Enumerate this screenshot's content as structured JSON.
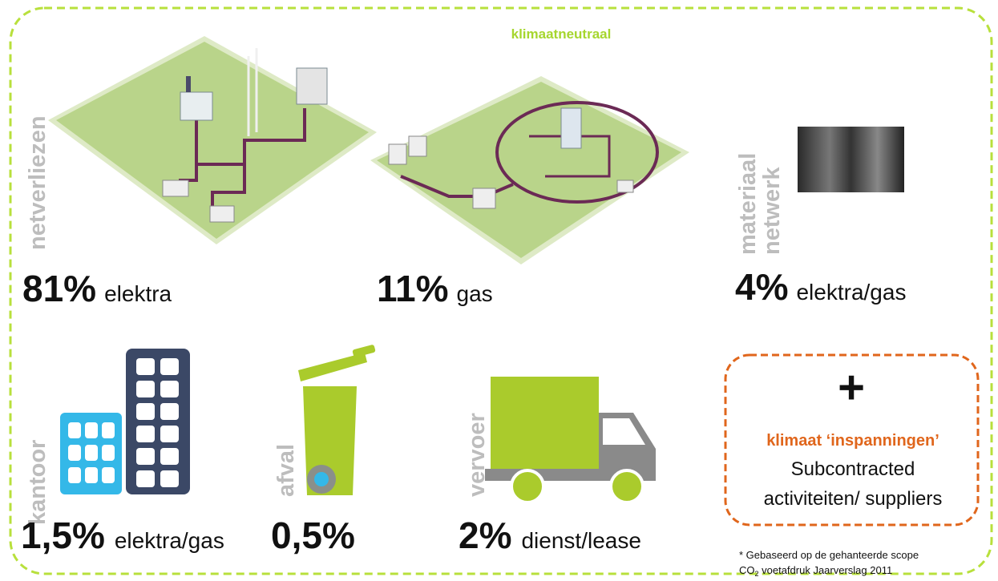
{
  "title": "klimaatneutraal",
  "items": [
    {
      "label": [
        "netverliezen"
      ],
      "value": "81%",
      "description": "elektra"
    },
    {
      "label": [],
      "value": "11%",
      "description": "gas"
    },
    {
      "label": [
        "materiaal",
        "netwerk"
      ],
      "value": "4%",
      "description": "elektra/gas"
    },
    {
      "label": [
        "kantoor"
      ],
      "value": "1,5%",
      "description": "elektra/gas"
    },
    {
      "label": [
        "afval"
      ],
      "value": "0,5%",
      "description": ""
    },
    {
      "label": [
        "vervoer"
      ],
      "value": "2%",
      "description": "dienst/lease"
    }
  ],
  "box": {
    "symbol": "+",
    "heading": "klimaat ‘inspanningen’",
    "lines": [
      "Subcontracted",
      "activiteiten/ suppliers"
    ]
  },
  "footnote": {
    "line1": "* Gebaseerd op de gehanteerde scope",
    "line2": [
      "CO",
      "2",
      " voetafdruk Jaarverslag 2011"
    ]
  }
}
